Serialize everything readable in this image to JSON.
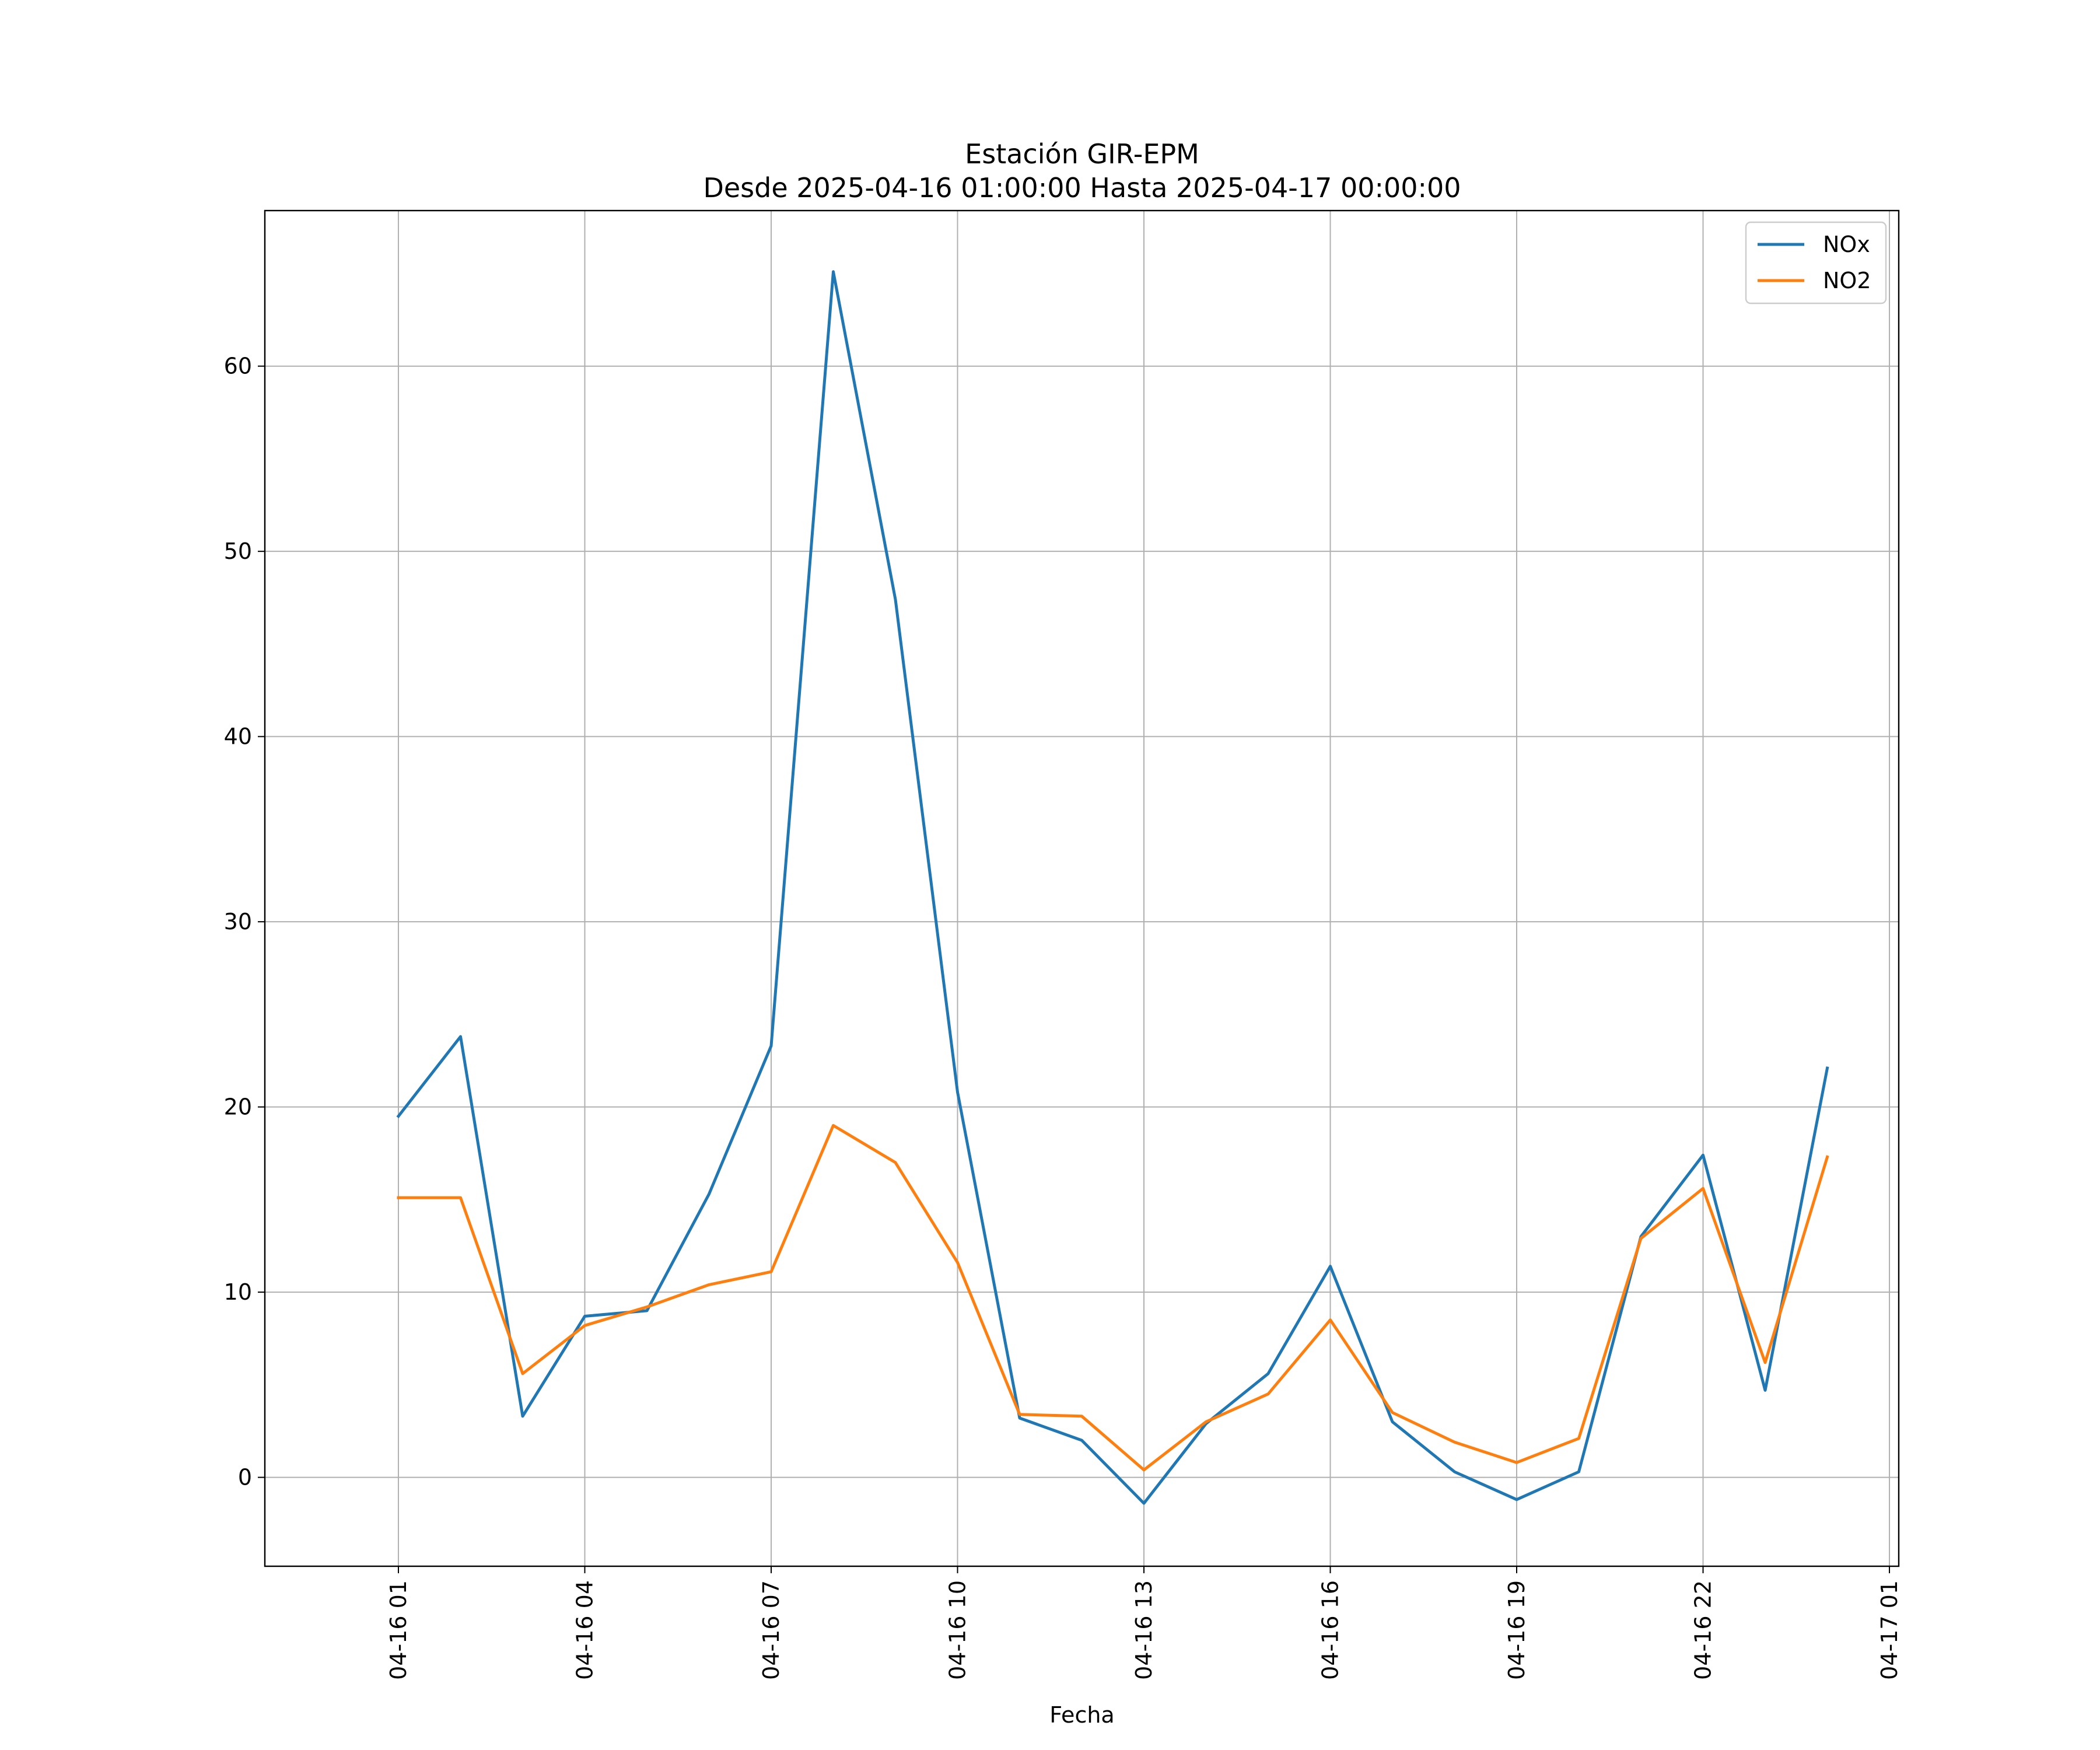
{
  "chart_data": {
    "type": "line",
    "title": "Estación GIR-EPM",
    "subtitle": "Desde 2025-04-16 01:00:00 Hasta 2025-04-17 00:00:00",
    "xlabel": "Fecha",
    "ylabel": "",
    "x": [
      "2025-04-16 01:00",
      "2025-04-16 02:00",
      "2025-04-16 03:00",
      "2025-04-16 04:00",
      "2025-04-16 05:00",
      "2025-04-16 06:00",
      "2025-04-16 07:00",
      "2025-04-16 08:00",
      "2025-04-16 09:00",
      "2025-04-16 10:00",
      "2025-04-16 11:00",
      "2025-04-16 12:00",
      "2025-04-16 13:00",
      "2025-04-16 14:00",
      "2025-04-16 15:00",
      "2025-04-16 16:00",
      "2025-04-16 17:00",
      "2025-04-16 18:00",
      "2025-04-16 19:00",
      "2025-04-16 20:00",
      "2025-04-16 21:00",
      "2025-04-16 22:00",
      "2025-04-16 23:00",
      "2025-04-17 00:00"
    ],
    "series": [
      {
        "name": "NOx",
        "color": "#1f77b4",
        "values": [
          19.5,
          23.8,
          3.3,
          8.7,
          9.0,
          15.3,
          23.3,
          65.1,
          47.4,
          20.8,
          3.2,
          2.0,
          -1.4,
          2.9,
          5.6,
          11.4,
          3.0,
          0.3,
          -1.2,
          0.3,
          13.0,
          17.4,
          4.7,
          22.1
        ]
      },
      {
        "name": "NO2",
        "color": "#ff7f0e",
        "values": [
          15.1,
          15.1,
          5.6,
          8.2,
          9.2,
          10.4,
          11.1,
          19.0,
          17.0,
          11.6,
          3.4,
          3.3,
          0.4,
          3.0,
          4.5,
          8.5,
          3.5,
          1.9,
          0.8,
          2.1,
          12.9,
          15.6,
          6.2,
          17.3
        ]
      }
    ],
    "x_ticks": [
      "04-16 01",
      "04-16 04",
      "04-16 07",
      "04-16 10",
      "04-16 13",
      "04-16 16",
      "04-16 19",
      "04-16 22",
      "04-17 01"
    ],
    "y_ticks": [
      0,
      10,
      20,
      30,
      40,
      50,
      60
    ],
    "xlim": [
      "2025-04-15 22:51",
      "2025-04-17 01:09"
    ],
    "ylim": [
      -4.8,
      68.4
    ],
    "grid": true,
    "legend_position": "top-right"
  }
}
